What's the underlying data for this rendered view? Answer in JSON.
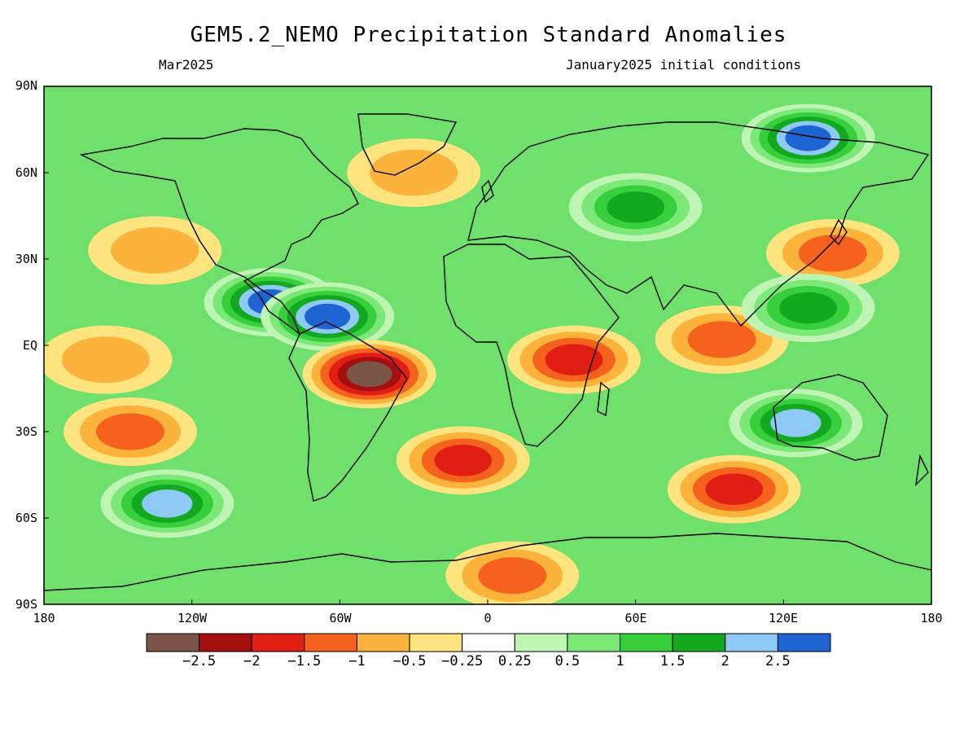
{
  "title": "GEM5.2_NEMO Precipitation Standard Anomalies",
  "subtitle_left": "Mar2025",
  "subtitle_right": "January2025 initial conditions",
  "lat_labels": [
    "90N",
    "60N",
    "30N",
    "EQ",
    "30S",
    "60S",
    "90S"
  ],
  "lon_labels": [
    "180",
    "120W",
    "60W",
    "0",
    "60E",
    "120E",
    "180"
  ],
  "colorbar": {
    "colors": [
      "#7a5548",
      "#a50f0f",
      "#e01e14",
      "#f5621e",
      "#fbb33c",
      "#fde47f",
      "#ffffff",
      "#bff5b4",
      "#7be878",
      "#37cf3c",
      "#12a820",
      "#8fcaf5",
      "#1e64d2"
    ],
    "labels": [
      "−2.5",
      "−2",
      "−1.5",
      "−1",
      "−0.5",
      "−0.25",
      "0.25",
      "0.5",
      "1",
      "1.5",
      "2",
      "2.5"
    ]
  },
  "anomaly_regions": [
    {
      "lon": -135,
      "lat": 33,
      "value": -1.2
    },
    {
      "lon": -145,
      "lat": -30,
      "value": -1.6
    },
    {
      "lon": -155,
      "lat": -5,
      "value": -0.9
    },
    {
      "lon": -88,
      "lat": 15,
      "value": 2.6
    },
    {
      "lon": -65,
      "lat": 10,
      "value": 2.6
    },
    {
      "lon": -48,
      "lat": -10,
      "value": -2.6
    },
    {
      "lon": -10,
      "lat": -40,
      "value": -2.0
    },
    {
      "lon": 10,
      "lat": -80,
      "value": -1.8
    },
    {
      "lon": 35,
      "lat": -5,
      "value": -2.0
    },
    {
      "lon": 95,
      "lat": 2,
      "value": -1.8
    },
    {
      "lon": 140,
      "lat": 32,
      "value": -1.8
    },
    {
      "lon": 130,
      "lat": 13,
      "value": 2.3
    },
    {
      "lon": 125,
      "lat": -27,
      "value": 2.4
    },
    {
      "lon": 130,
      "lat": 72,
      "value": 2.6
    },
    {
      "lon": -130,
      "lat": -55,
      "value": 2.5
    },
    {
      "lon": 100,
      "lat": -50,
      "value": -2.0
    },
    {
      "lon": -30,
      "lat": 60,
      "value": -1.2
    },
    {
      "lon": 60,
      "lat": 48,
      "value": 2.3
    }
  ]
}
